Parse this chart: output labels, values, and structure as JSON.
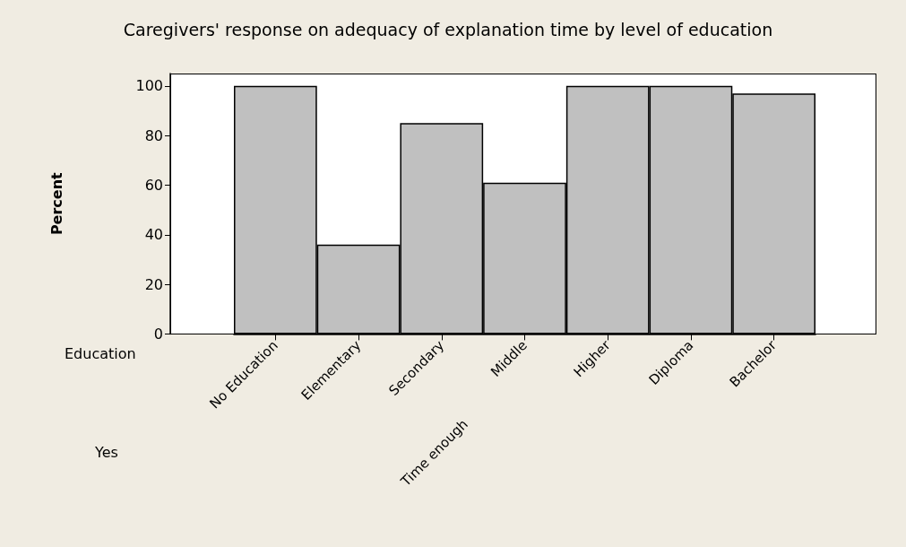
{
  "chart_data": {
    "type": "bar",
    "title": "Caregivers' response on adequacy of explanation time by level of education",
    "ylabel": "Percent",
    "xlabel": "Time enough",
    "annotations": [
      "Education",
      "Yes"
    ],
    "categories": [
      "No Education",
      "Elementary",
      "Secondary",
      "Middle",
      "Higher",
      "Diploma",
      "Bachelor"
    ],
    "values": [
      100,
      36,
      85,
      61,
      100,
      100,
      97
    ],
    "color": "#c0c0c0",
    "ylim": [
      0,
      105
    ],
    "yticks": [
      0,
      20,
      40,
      60,
      80,
      100
    ],
    "grid": false
  }
}
